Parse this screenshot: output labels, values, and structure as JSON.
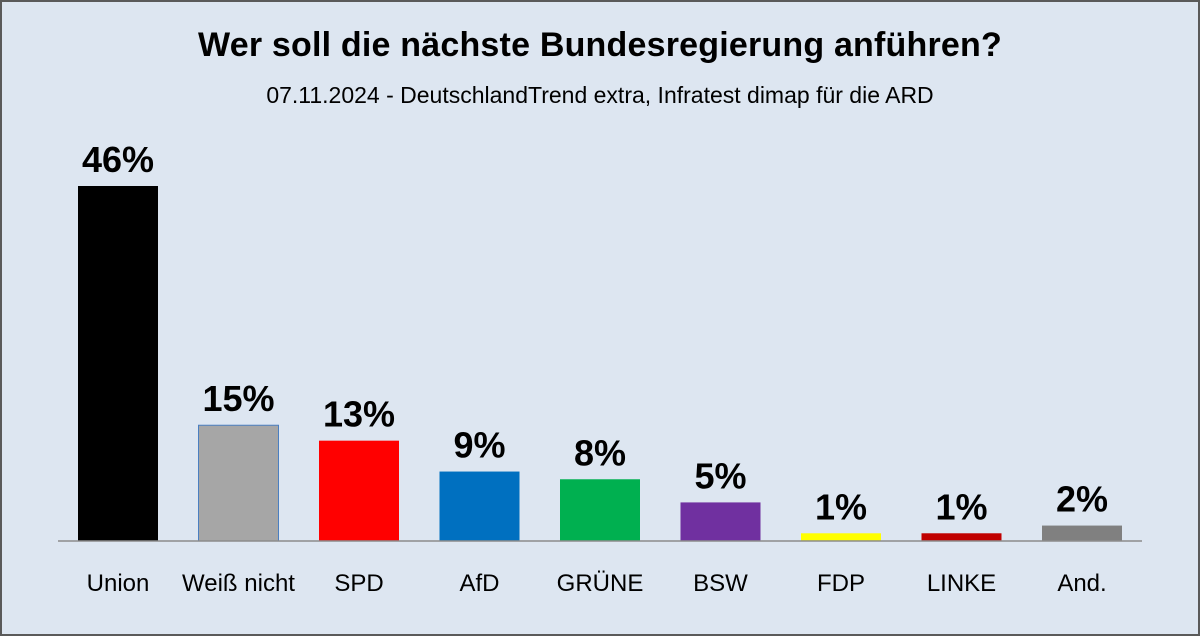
{
  "chart_data": {
    "type": "bar",
    "title": "Wer soll die nächste Bundesregierung anführen?",
    "subtitle": "07.11.2024 - DeutschlandTrend extra, Infratest dimap für die ARD",
    "categories": [
      "Union",
      "Weiß nicht",
      "SPD",
      "AfD",
      "GRÜNE",
      "BSW",
      "FDP",
      "LINKE",
      "And."
    ],
    "values": [
      46,
      15,
      13,
      9,
      8,
      5,
      1,
      1,
      2
    ],
    "value_labels": [
      "46%",
      "15%",
      "13%",
      "9%",
      "8%",
      "5%",
      "1%",
      "1%",
      "2%"
    ],
    "colors": [
      "#000000",
      "#a6a6a6",
      "#ff0000",
      "#0070c0",
      "#00b050",
      "#7030a0",
      "#ffff00",
      "#c00000",
      "#808080"
    ],
    "xlabel": "",
    "ylabel": "",
    "ylim": [
      0,
      46
    ],
    "grid": false,
    "legend": "none"
  }
}
